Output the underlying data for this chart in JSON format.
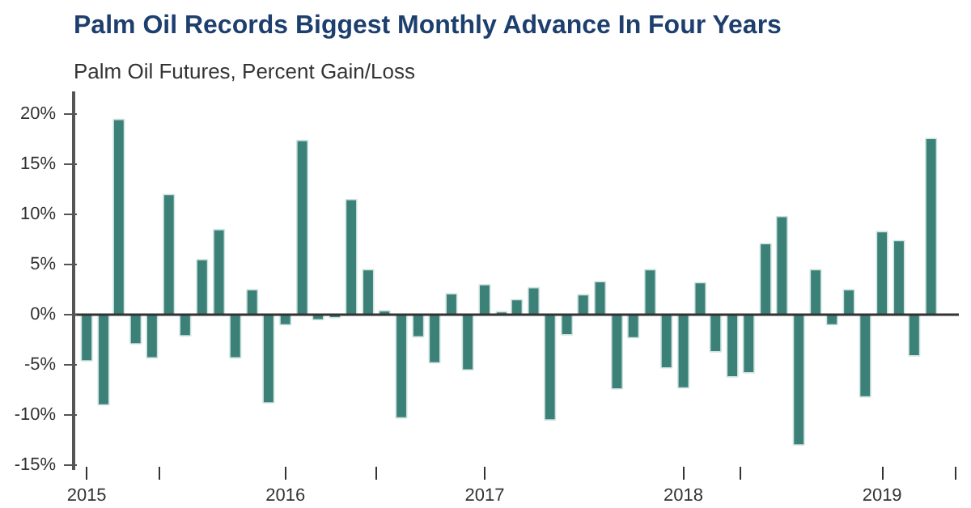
{
  "chart_data": {
    "type": "bar",
    "title": "Palm Oil Records Biggest Monthly Advance In Four Years",
    "subtitle": "Palm Oil Futures, Percent Gain/Loss",
    "x": [
      "2015-01",
      "2015-02",
      "2015-03",
      "2015-04",
      "2015-05",
      "2015-06",
      "2015-07",
      "2015-08",
      "2015-09",
      "2015-10",
      "2015-11",
      "2015-12",
      "2016-01",
      "2016-02",
      "2016-03",
      "2016-04",
      "2016-05",
      "2016-06",
      "2016-07",
      "2016-08",
      "2016-09",
      "2016-10",
      "2016-11",
      "2016-12",
      "2017-01",
      "2017-02",
      "2017-03",
      "2017-04",
      "2017-05",
      "2017-06",
      "2017-07",
      "2017-08",
      "2017-09",
      "2017-10",
      "2017-11",
      "2017-12",
      "2018-01",
      "2018-02",
      "2018-03",
      "2018-04",
      "2018-05",
      "2018-06",
      "2018-07",
      "2018-08",
      "2018-09",
      "2018-10",
      "2018-11",
      "2018-12",
      "2019-01",
      "2019-02",
      "2019-03",
      "2019-04"
    ],
    "values": [
      -4.6,
      -9.0,
      19.5,
      -2.9,
      -4.3,
      12.0,
      -2.1,
      5.5,
      8.5,
      -4.3,
      2.5,
      -8.8,
      -1.0,
      17.4,
      -0.5,
      -0.3,
      11.5,
      4.5,
      0.4,
      -10.3,
      -2.2,
      -4.8,
      2.1,
      -5.5,
      3.0,
      0.3,
      1.5,
      2.7,
      -10.5,
      -2.0,
      2.0,
      3.3,
      -7.4,
      -2.3,
      4.5,
      -5.3,
      -7.3,
      3.2,
      -3.7,
      -6.2,
      -5.8,
      7.1,
      9.8,
      -13.0,
      4.5,
      -1.0,
      2.5,
      -8.2,
      8.3,
      7.4,
      -4.1,
      17.6
    ],
    "color": "#3c8178",
    "xlim": [
      "2014-12-08",
      "2019-05-22"
    ],
    "xticks": [
      {
        "value": "2015-01-01",
        "label": "2015"
      },
      {
        "value": "2015-05-15",
        "label": null
      },
      {
        "value": "2016-01-01",
        "label": "2016"
      },
      {
        "value": "2016-06-15",
        "label": null
      },
      {
        "value": "2017-01-01",
        "label": "2017"
      },
      {
        "value": "2018-01-01",
        "label": "2018"
      },
      {
        "value": "2018-04-15",
        "label": null
      },
      {
        "value": "2019-01-01",
        "label": "2019"
      },
      {
        "value": "2019-05-15",
        "label": null
      }
    ],
    "ref_lines": [
      {
        "axis": "y",
        "value": 0,
        "color": "#333333"
      }
    ],
    "ylim": [
      -15.5,
      22.3
    ],
    "yticks": [
      {
        "value": -15,
        "label": "-15%"
      },
      {
        "value": -10,
        "label": "-10%"
      },
      {
        "value": -5,
        "label": "-5%"
      },
      {
        "value": 0,
        "label": "0%"
      },
      {
        "value": 5,
        "label": "5%"
      },
      {
        "value": 10,
        "label": "10%"
      },
      {
        "value": 15,
        "label": "15%"
      },
      {
        "value": 20,
        "label": "20%"
      }
    ],
    "grid": false
  }
}
